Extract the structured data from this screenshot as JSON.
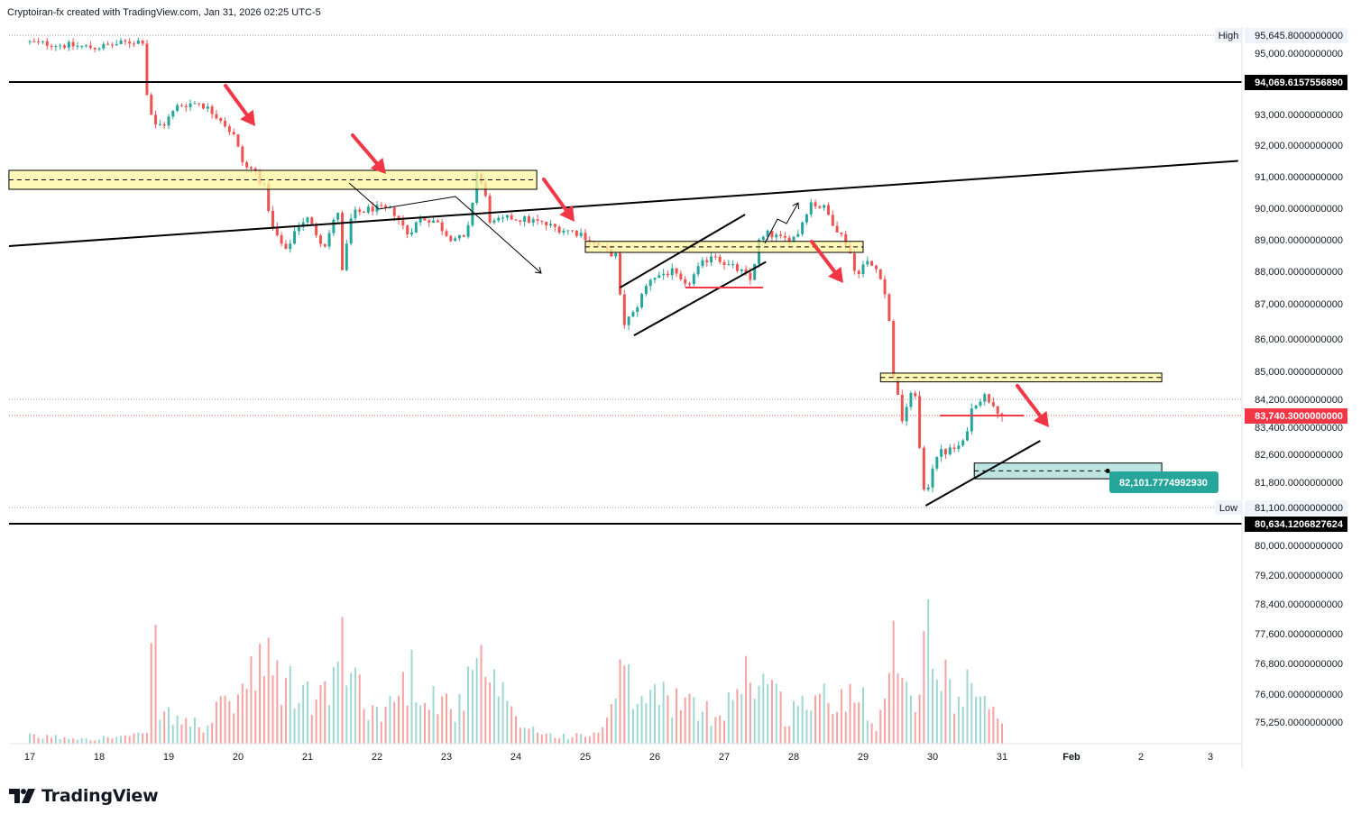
{
  "header": {
    "attribution": "Cryptoiran-fx created with TradingView.com, Jan 31, 2026 02:25 UTC-5"
  },
  "footer": {
    "logo_icon": "tradingview-logo-icon",
    "logo_text": "TradingView"
  },
  "colors": {
    "up": "#26a69a",
    "down": "#ef5350",
    "zone_fill": "#fff59d",
    "target_fill": "#b2dfdb",
    "target_label_bg": "#26a69a",
    "arrow": "#f23645",
    "line": "#000000",
    "price_label_bg": "#f23645"
  },
  "chart_data": {
    "type": "candlestick",
    "symbol_timeframe": "crypto pair, intraday candles with volume",
    "x_axis": {
      "tick_labels": [
        "17",
        "18",
        "19",
        "20",
        "21",
        "22",
        "23",
        "24",
        "25",
        "26",
        "27",
        "28",
        "29",
        "30",
        "31",
        "Feb",
        "2",
        "3"
      ],
      "range_days": [
        16.7,
        34.4
      ]
    },
    "y_axis": {
      "tick_labels": [
        "95,000.0000000000",
        "93,000.0000000000",
        "92,000.0000000000",
        "91,000.0000000000",
        "90,000.0000000000",
        "89,000.0000000000",
        "88,000.0000000000",
        "87,000.0000000000",
        "86,000.0000000000",
        "85,000.0000000000",
        "84,200.0000000000",
        "83,400.0000000000",
        "82,600.0000000000",
        "81,800.0000000000",
        "81,100.0000000000",
        "80,000.0000000000",
        "79,200.0000000000",
        "78,400.0000000000",
        "77,600.0000000000",
        "76,800.0000000000",
        "76,000.0000000000",
        "75,250.0000000000"
      ],
      "scale": "irregular (labels as printed)"
    },
    "price_labels": [
      {
        "tag": "High",
        "value": "95,645.8000000000",
        "style": "plain"
      },
      {
        "tag": "",
        "value": "94,069.6157556890",
        "style": "black"
      },
      {
        "tag": "",
        "value": "83,740.3000000000",
        "style": "red"
      },
      {
        "tag": "Low",
        "value": "81,100.0000000000",
        "style": "plain"
      },
      {
        "tag": "",
        "value": "80,634.1206827624",
        "style": "black"
      }
    ],
    "target_label": "82,101.7774992930",
    "price_path": [
      [
        17.0,
        95400
      ],
      [
        17.5,
        95300
      ],
      [
        18.0,
        95200
      ],
      [
        18.5,
        95400
      ],
      [
        18.7,
        95450
      ],
      [
        18.75,
        93700
      ],
      [
        18.85,
        92600
      ],
      [
        19.0,
        92700
      ],
      [
        19.2,
        93300
      ],
      [
        19.5,
        93400
      ],
      [
        19.8,
        92900
      ],
      [
        20.0,
        92300
      ],
      [
        20.15,
        91300
      ],
      [
        20.3,
        91200
      ],
      [
        20.45,
        90600
      ],
      [
        20.55,
        89400
      ],
      [
        20.75,
        88600
      ],
      [
        20.9,
        89400
      ],
      [
        21.05,
        89700
      ],
      [
        21.3,
        88800
      ],
      [
        21.5,
        89900
      ],
      [
        21.55,
        87800
      ],
      [
        21.7,
        89800
      ],
      [
        22.0,
        90000
      ],
      [
        22.3,
        89900
      ],
      [
        22.5,
        89200
      ],
      [
        22.7,
        89700
      ],
      [
        22.9,
        89600
      ],
      [
        23.1,
        89100
      ],
      [
        23.35,
        89000
      ],
      [
        23.5,
        91100
      ],
      [
        23.6,
        90600
      ],
      [
        23.7,
        89500
      ],
      [
        24.0,
        89700
      ],
      [
        24.3,
        89600
      ],
      [
        24.6,
        89400
      ],
      [
        25.0,
        89200
      ],
      [
        25.3,
        88700
      ],
      [
        25.5,
        88500
      ],
      [
        25.6,
        86400
      ],
      [
        25.75,
        86700
      ],
      [
        26.0,
        87800
      ],
      [
        26.3,
        88000
      ],
      [
        26.5,
        87500
      ],
      [
        26.7,
        88100
      ],
      [
        26.9,
        88600
      ],
      [
        27.1,
        88200
      ],
      [
        27.3,
        88000
      ],
      [
        27.45,
        87700
      ],
      [
        27.55,
        88900
      ],
      [
        27.7,
        89200
      ],
      [
        27.9,
        89000
      ],
      [
        28.1,
        89100
      ],
      [
        28.3,
        90200
      ],
      [
        28.5,
        90000
      ],
      [
        28.7,
        89300
      ],
      [
        28.85,
        88800
      ],
      [
        28.95,
        87900
      ],
      [
        29.1,
        88300
      ],
      [
        29.3,
        88000
      ],
      [
        29.42,
        86900
      ],
      [
        29.5,
        84900
      ],
      [
        29.62,
        83600
      ],
      [
        29.72,
        84200
      ],
      [
        29.82,
        84400
      ],
      [
        29.9,
        82000
      ],
      [
        29.95,
        81300
      ],
      [
        30.1,
        82600
      ],
      [
        30.3,
        82700
      ],
      [
        30.5,
        82900
      ],
      [
        30.65,
        84100
      ],
      [
        30.8,
        84300
      ],
      [
        30.95,
        84100
      ],
      [
        31.05,
        83740
      ]
    ],
    "volume_path": [
      [
        17.0,
        0.05
      ],
      [
        18.0,
        0.04
      ],
      [
        18.7,
        0.06
      ],
      [
        18.75,
        0.85
      ],
      [
        18.9,
        0.2
      ],
      [
        19.5,
        0.12
      ],
      [
        20.0,
        0.35
      ],
      [
        20.4,
        0.55
      ],
      [
        20.7,
        0.4
      ],
      [
        21.2,
        0.3
      ],
      [
        21.5,
        0.62
      ],
      [
        21.7,
        0.45
      ],
      [
        22.0,
        0.2
      ],
      [
        22.3,
        0.35
      ],
      [
        22.5,
        0.5
      ],
      [
        22.9,
        0.3
      ],
      [
        23.2,
        0.25
      ],
      [
        23.45,
        0.55
      ],
      [
        23.7,
        0.4
      ],
      [
        24.0,
        0.15
      ],
      [
        24.5,
        0.06
      ],
      [
        25.0,
        0.05
      ],
      [
        25.3,
        0.12
      ],
      [
        25.5,
        0.45
      ],
      [
        25.8,
        0.3
      ],
      [
        26.2,
        0.35
      ],
      [
        26.5,
        0.25
      ],
      [
        26.9,
        0.2
      ],
      [
        27.3,
        0.5
      ],
      [
        27.6,
        0.45
      ],
      [
        27.9,
        0.2
      ],
      [
        28.3,
        0.35
      ],
      [
        28.6,
        0.25
      ],
      [
        28.9,
        0.45
      ],
      [
        29.2,
        0.15
      ],
      [
        29.4,
        0.45
      ],
      [
        29.48,
        0.95
      ],
      [
        29.6,
        0.5
      ],
      [
        29.85,
        0.3
      ],
      [
        29.9,
        1.0
      ],
      [
        30.1,
        0.45
      ],
      [
        30.4,
        0.35
      ],
      [
        30.6,
        0.5
      ],
      [
        30.8,
        0.25
      ],
      [
        31.05,
        0.08
      ]
    ],
    "zones": [
      {
        "name": "resistance-zone-left",
        "from_day": 16.7,
        "to_day": 24.3,
        "low": 90600,
        "high": 91200
      },
      {
        "name": "middle-zone",
        "from_day": 25.0,
        "to_day": 29.0,
        "low": 88600,
        "high": 88950
      },
      {
        "name": "resistance-zone-right",
        "from_day": 29.25,
        "to_day": 33.3,
        "low": 84700,
        "high": 84950
      }
    ],
    "target_zone": {
      "from_day": 30.6,
      "to_day": 33.3,
      "low": 81900,
      "high": 82350
    },
    "horizontal_lines": [
      94069.615755689,
      80634.1206827624
    ],
    "trend_lines": [
      {
        "name": "main-ascending-line",
        "from": [
          16.7,
          88800
        ],
        "to": [
          34.4,
          91500
        ]
      },
      {
        "name": "channel-upper",
        "from": [
          25.5,
          87500
        ],
        "to": [
          27.3,
          89800
        ]
      },
      {
        "name": "channel-lower",
        "from": [
          25.7,
          86100
        ],
        "to": [
          27.6,
          88300
        ]
      },
      {
        "name": "support-line-bottom",
        "from": [
          29.9,
          81150
        ],
        "to": [
          31.55,
          83000
        ]
      }
    ],
    "grid": false,
    "legend": "none"
  }
}
